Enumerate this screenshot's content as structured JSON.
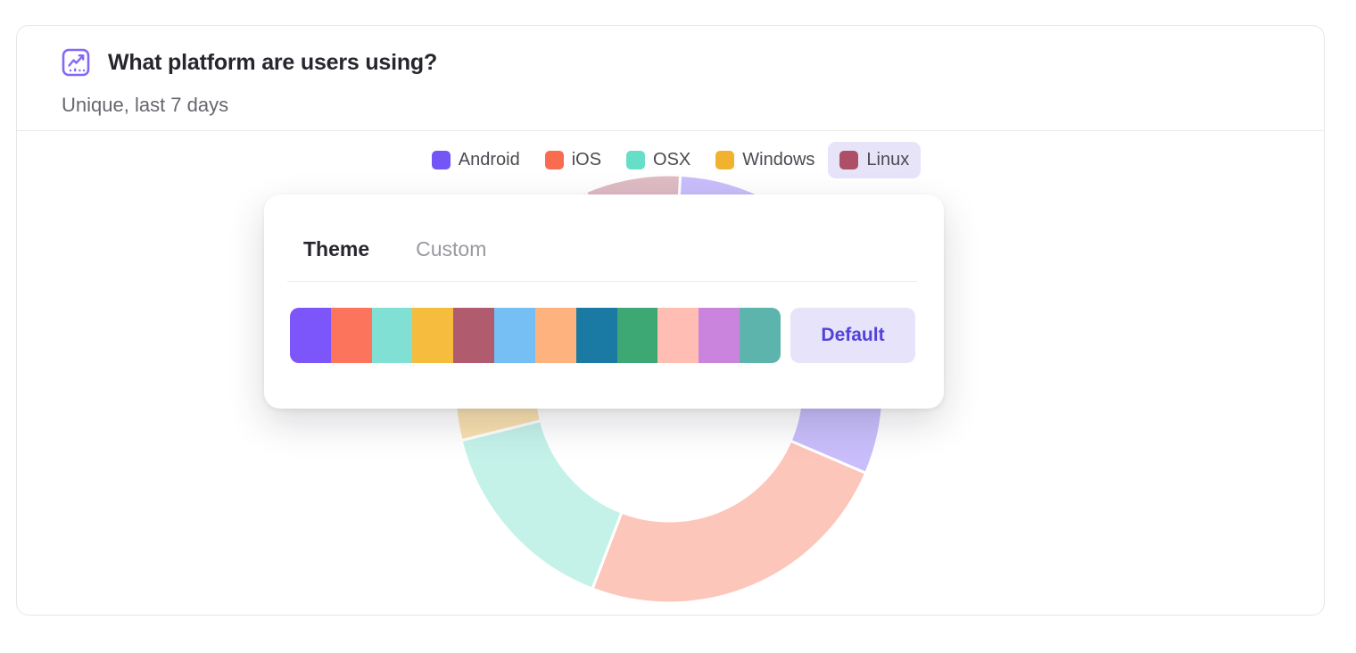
{
  "header": {
    "title": "What platform are users using?",
    "subtitle": "Unique, last 7 days",
    "icon_color": "#8668f8"
  },
  "legend": {
    "highlight_bg": "#e7e4fa",
    "items": [
      {
        "label": "Android",
        "highlighted": false
      },
      {
        "label": "iOS",
        "highlighted": false
      },
      {
        "label": "OSX",
        "highlighted": false
      },
      {
        "label": "Windows",
        "highlighted": false
      },
      {
        "label": "Linux",
        "highlighted": true
      }
    ]
  },
  "popover": {
    "tabs": [
      {
        "label": "Theme",
        "active": true
      },
      {
        "label": "Custom",
        "active": false
      }
    ],
    "palette_colors": [
      "#7c56fb",
      "#fc745b",
      "#80e0d3",
      "#f6bc3e",
      "#b05b6e",
      "#75bff5",
      "#feb27d",
      "#1a7aa3",
      "#3da873",
      "#ffbdb4",
      "#ca84de",
      "#5cb4ac"
    ],
    "default_button": {
      "label": "Default",
      "bg": "#e7e3fb",
      "text_color": "#5143d9"
    }
  },
  "chart_data": {
    "type": "pie",
    "donut": true,
    "title": "What platform are users using?",
    "subtitle": "Unique, last 7 days",
    "legend_position": "top",
    "state": "faded behind open theme popover",
    "faded_opacity": 0.38,
    "start_angle_deg": 3,
    "segments": [
      {
        "label": "Android",
        "value_pct": 30.6,
        "color": "#7456f7"
      },
      {
        "label": "iOS",
        "value_pct": 24.4,
        "color": "#fa6c4f"
      },
      {
        "label": "OSX",
        "value_pct": 15.3,
        "color": "#67dfc8"
      },
      {
        "label": "Windows",
        "value_pct": 22.5,
        "color": "#f1b32f"
      },
      {
        "label": "Linux",
        "value_pct": 7.2,
        "color": "#ad4f66"
      }
    ]
  }
}
